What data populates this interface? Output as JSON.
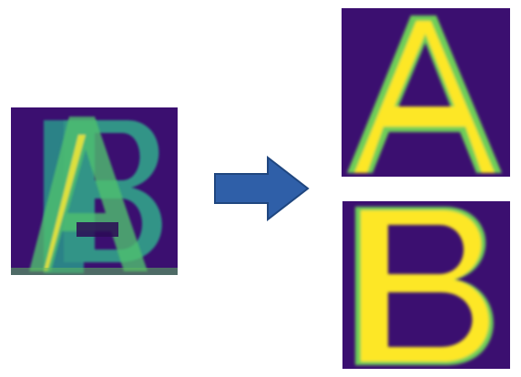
{
  "diagram": {
    "input": {
      "description_letters": [
        "A",
        "B"
      ]
    },
    "outputs": [
      {
        "letter": "A"
      },
      {
        "letter": "B"
      }
    ],
    "colors": {
      "background": "#3b0f70",
      "deep": "#2c0b56",
      "mid": "#21908d",
      "teal": "#3aa38c",
      "bright": "#fde725",
      "green": "#6ece58",
      "arrow_fill": "#2f5fa8",
      "arrow_stroke": "#1f467f"
    }
  }
}
